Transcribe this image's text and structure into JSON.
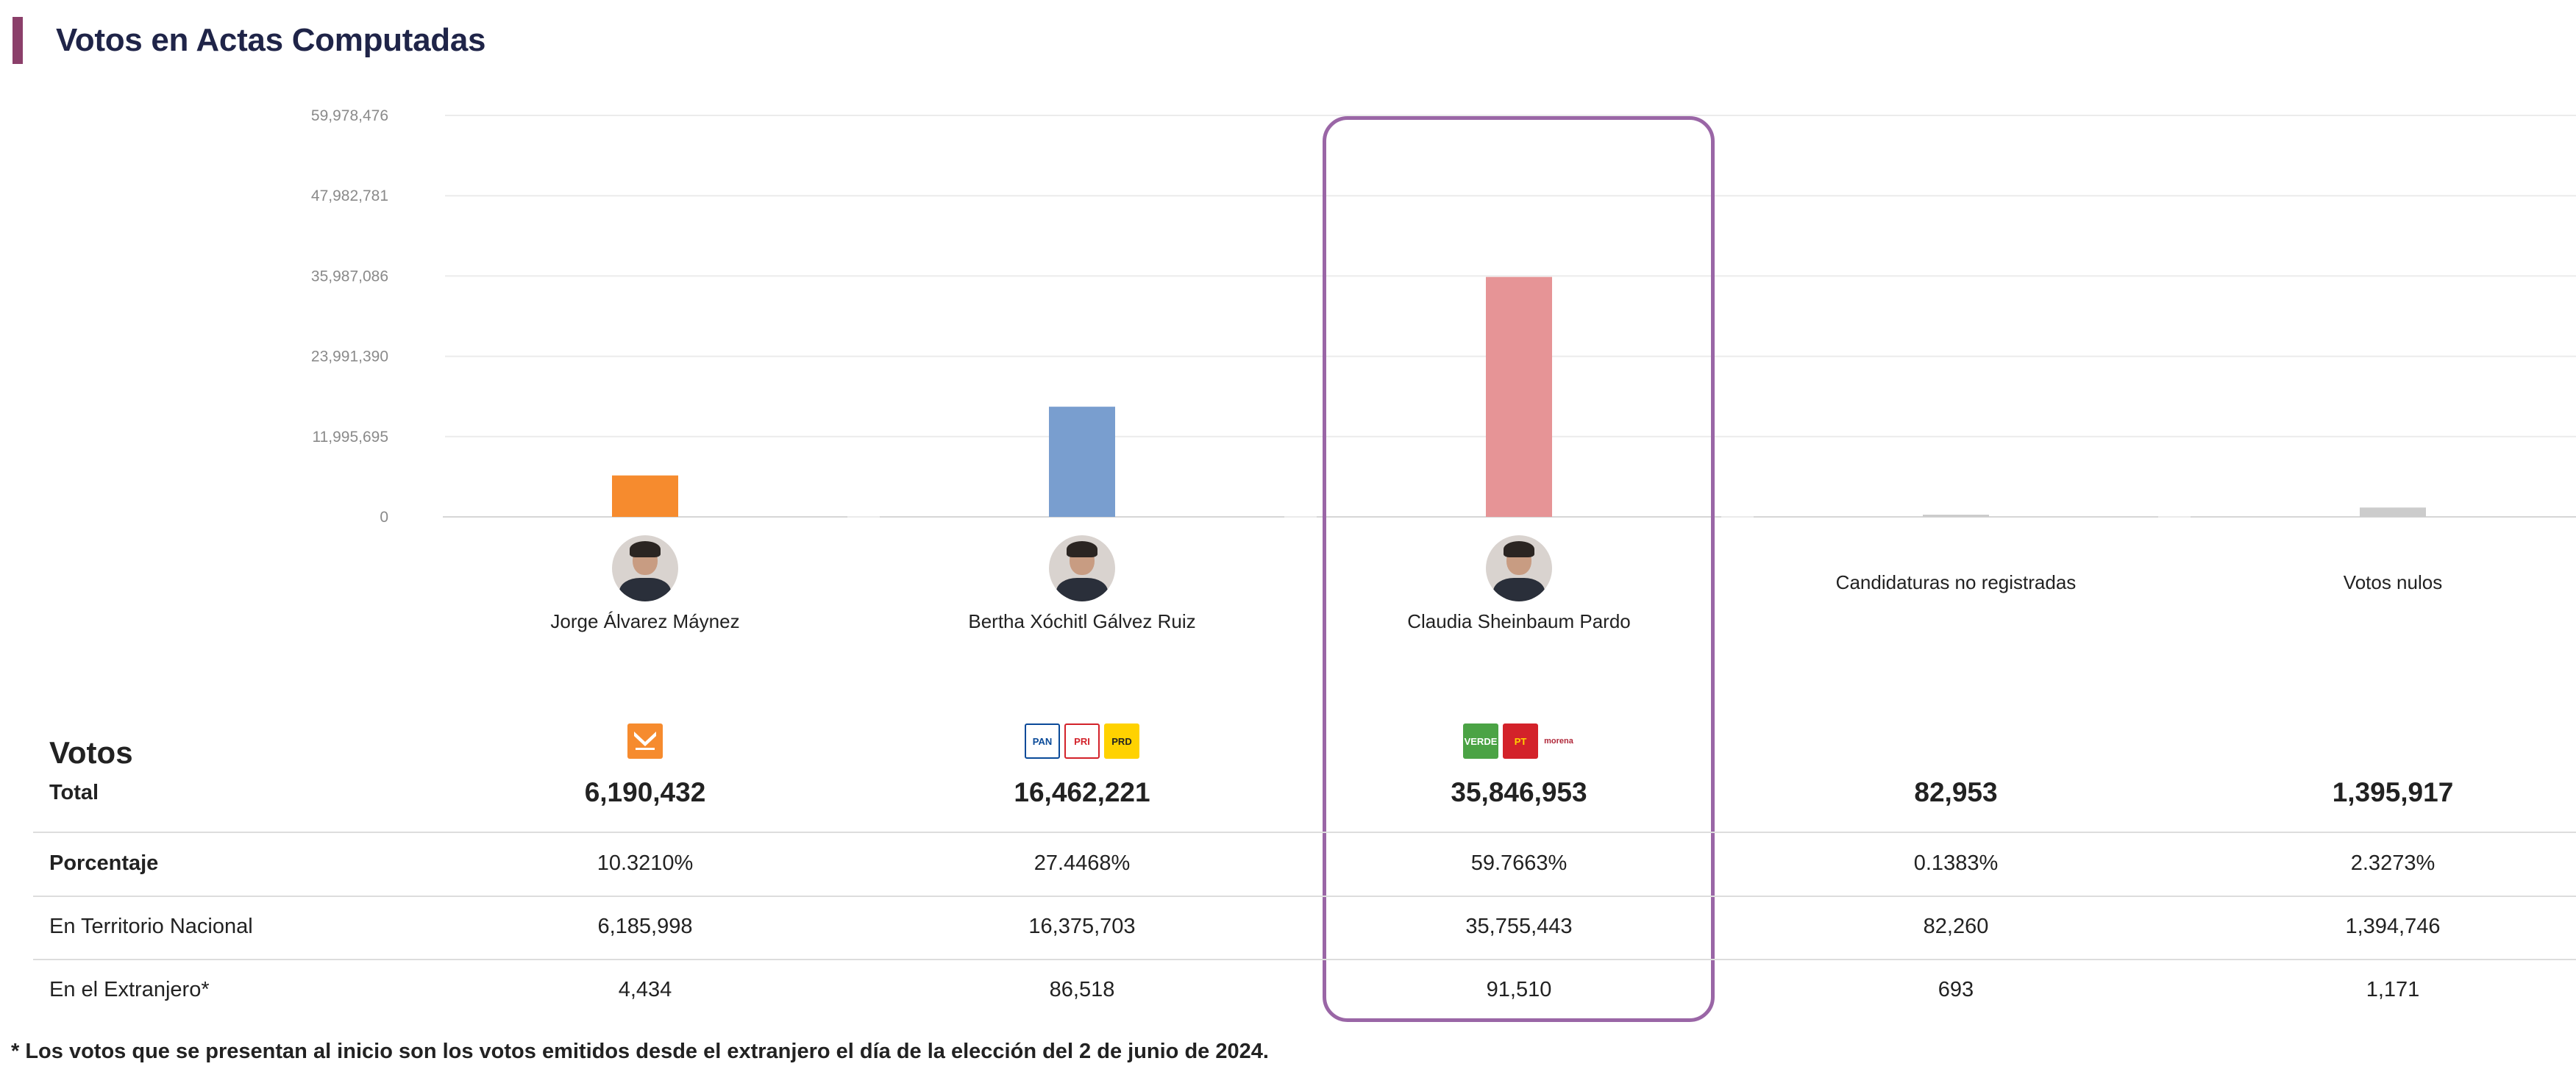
{
  "page": {
    "title": "Votos en Actas Computadas",
    "accent_color": "#8b3f6a",
    "footnote": "* Los votos que se presentan al inicio son los votos emitidos desde el extranjero el día de la elección del 2 de junio de 2024."
  },
  "chart_data": {
    "type": "bar",
    "categories": [
      "Jorge Álvarez Máynez",
      "Bertha Xóchitl Gálvez Ruiz",
      "Claudia Sheinbaum Pardo",
      "Candidaturas no registradas",
      "Votos nulos"
    ],
    "values": [
      6190432,
      16462221,
      35846953,
      82953,
      1395917
    ],
    "colors": [
      "#f68b2e",
      "#799ecf",
      "#e69496",
      "#cccccc",
      "#cccccc"
    ],
    "ylim": [
      0,
      59978476
    ],
    "yticks": [
      0,
      11995695,
      23991390,
      35987086,
      47982781,
      59978476
    ],
    "ytick_labels": [
      "0",
      "11,995,695",
      "23,991,390",
      "35,987,086",
      "47,982,781",
      "59,978,476"
    ],
    "highlighted": "Claudia Sheinbaum Pardo",
    "highlight_color": "#9a66a6",
    "title": "",
    "xlabel": "",
    "ylabel": ""
  },
  "candidates": [
    {
      "name": "Jorge Álvarez Máynez",
      "has_photo": true,
      "photo_icon": "candidate-photo-icon"
    },
    {
      "name": "Bertha Xóchitl Gálvez Ruiz",
      "has_photo": true,
      "photo_icon": "candidate-photo-icon"
    },
    {
      "name": "Claudia Sheinbaum Pardo",
      "has_photo": true,
      "photo_icon": "candidate-photo-icon"
    },
    {
      "name": "Candidaturas no registradas",
      "has_photo": false
    },
    {
      "name": "Votos nulos",
      "has_photo": false
    }
  ],
  "party_logos": [
    [
      {
        "icon": "movimiento-ciudadano-logo",
        "bg": "#f68b2e",
        "fg": "#ffffff",
        "text": ""
      }
    ],
    [
      {
        "icon": "pan-logo",
        "bg": "#ffffff",
        "fg": "#0a4a99",
        "text": "PAN"
      },
      {
        "icon": "pri-logo",
        "bg": "#ffffff",
        "fg": "#d3222a",
        "text": "PRI"
      },
      {
        "icon": "prd-logo",
        "bg": "#ffd200",
        "fg": "#222222",
        "text": "PRD"
      }
    ],
    [
      {
        "icon": "pvem-logo",
        "bg": "#4ba345",
        "fg": "#ffffff",
        "text": "VERDE"
      },
      {
        "icon": "pt-logo",
        "bg": "#d3222a",
        "fg": "#ffd200",
        "text": "PT"
      },
      {
        "icon": "morena-logo",
        "bg": "transparent",
        "fg": "#b0283a",
        "text": "morena"
      }
    ],
    [],
    []
  ],
  "table": {
    "heading": "Votos",
    "rows": [
      {
        "label": "Total",
        "values": [
          "6,190,432",
          "16,462,221",
          "35,846,953",
          "82,953",
          "1,395,917"
        ]
      },
      {
        "label": "Porcentaje",
        "values": [
          "10.3210%",
          "27.4468%",
          "59.7663%",
          "0.1383%",
          "2.3273%"
        ]
      },
      {
        "label": "En Territorio Nacional",
        "values": [
          "6,185,998",
          "16,375,703",
          "35,755,443",
          "82,260",
          "1,394,746"
        ]
      },
      {
        "label": "En el Extranjero*",
        "values": [
          "4,434",
          "86,518",
          "91,510",
          "693",
          "1,171"
        ]
      }
    ]
  }
}
